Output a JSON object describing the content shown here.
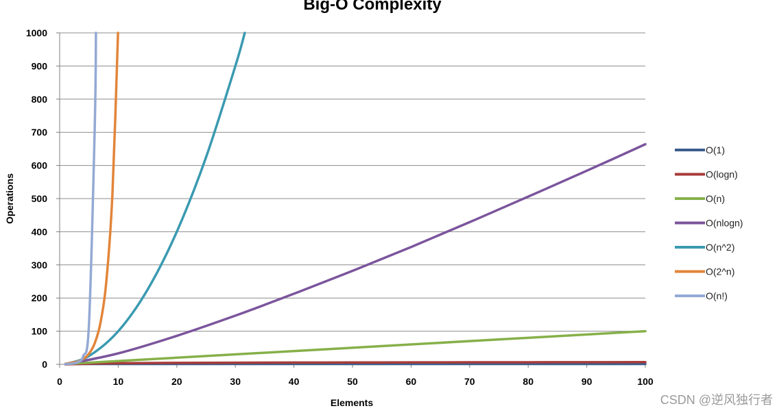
{
  "chart_data": {
    "type": "line",
    "title": "Big-O Complexity",
    "xlabel": "Elements",
    "ylabel": "Operations",
    "xlim": [
      0,
      100
    ],
    "ylim": [
      0,
      1000
    ],
    "x_ticks": [
      "0",
      "10",
      "20",
      "30",
      "40",
      "50",
      "60",
      "70",
      "80",
      "90",
      "100"
    ],
    "y_ticks": [
      "0",
      "100",
      "200",
      "300",
      "400",
      "500",
      "600",
      "700",
      "800",
      "900",
      "1000"
    ],
    "grid": "horizontal",
    "legend_position": "right",
    "series": [
      {
        "name": "O(1)",
        "color": "#3b5e8c",
        "x": [
          1,
          100
        ],
        "y": [
          1,
          1
        ]
      },
      {
        "name": "O(logn)",
        "color": "#a83c3a",
        "x": [
          1,
          10,
          20,
          30,
          40,
          50,
          60,
          70,
          80,
          90,
          100
        ],
        "y": [
          0,
          3.3,
          4.3,
          4.9,
          5.3,
          5.6,
          5.9,
          6.1,
          6.3,
          6.5,
          6.6
        ]
      },
      {
        "name": "O(n)",
        "color": "#86b04a",
        "x": [
          1,
          100
        ],
        "y": [
          1,
          100
        ]
      },
      {
        "name": "O(nlogn)",
        "color": "#7b559c",
        "x": [
          1,
          10,
          20,
          30,
          40,
          50,
          60,
          70,
          80,
          90,
          100
        ],
        "y": [
          0,
          33,
          86,
          147,
          213,
          282,
          354,
          429,
          506,
          584,
          664
        ]
      },
      {
        "name": "O(n^2)",
        "color": "#3a9ab0",
        "x": [
          1,
          5,
          10,
          15,
          20,
          25,
          30,
          31.6
        ],
        "y": [
          1,
          25,
          100,
          225,
          400,
          625,
          900,
          1000
        ]
      },
      {
        "name": "O(2^n)",
        "color": "#e2853a",
        "x": [
          1,
          3,
          4,
          5,
          6,
          7,
          8,
          9,
          9.97
        ],
        "y": [
          2,
          8,
          16,
          32,
          64,
          128,
          256,
          512,
          1000
        ]
      },
      {
        "name": "O(n!)",
        "color": "#94a9d4",
        "x": [
          1,
          2,
          3,
          4,
          5,
          6,
          6.2
        ],
        "y": [
          1,
          2,
          6,
          24,
          120,
          720,
          1000
        ]
      }
    ]
  },
  "watermark": "CSDN @逆风独行者"
}
